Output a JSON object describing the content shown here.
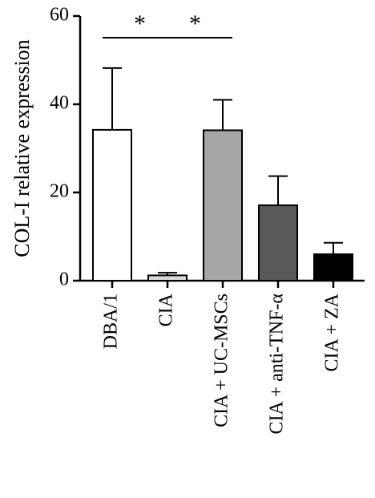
{
  "chart_data": {
    "type": "bar",
    "title": "",
    "xlabel": "",
    "ylabel": "COL-I relative expression",
    "ylim": [
      0,
      60
    ],
    "yticks": [
      "0",
      "20",
      "40",
      "60"
    ],
    "grid": false,
    "categories": [
      "DBA/1",
      "CIA",
      "CIA + UC-MSCs",
      "CIA + anti-TNF-α",
      "CIA + ZA"
    ],
    "values": [
      34.2,
      1.2,
      34.1,
      17.1,
      6.0
    ],
    "error_upper": [
      48.2,
      1.8,
      41.0,
      23.7,
      8.6
    ],
    "bar_colors": [
      "#ffffff",
      "#d9d9d9",
      "#a6a6a6",
      "#595959",
      "#000000"
    ],
    "significance": [
      {
        "from": "DBA/1",
        "to": "CIA",
        "label": "*"
      },
      {
        "from": "CIA",
        "to": "CIA + UC-MSCs",
        "label": "*"
      }
    ]
  }
}
